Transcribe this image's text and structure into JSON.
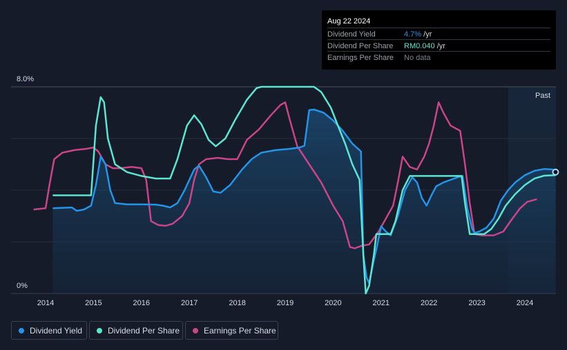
{
  "tooltip": {
    "date": "Aug 22 2024",
    "rows": [
      {
        "label": "Dividend Yield",
        "value": "4.7%",
        "unit": " /yr",
        "color": "#2394e8"
      },
      {
        "label": "Dividend Per Share",
        "value": "RM0.040",
        "unit": " /yr",
        "color": "#5ce6d2"
      },
      {
        "label": "Earnings Per Share",
        "value": "No data",
        "unit": "",
        "color": "#7c818b"
      }
    ]
  },
  "past_label": "Past",
  "legend": [
    {
      "label": "Dividend Yield",
      "color": "#2394e8"
    },
    {
      "label": "Dividend Per Share",
      "color": "#5ce6d2"
    },
    {
      "label": "Earnings Per Share",
      "color": "#c94488"
    }
  ],
  "chart_data": {
    "type": "line",
    "y_tick_labels": [
      "8.0%",
      "0%"
    ],
    "ylim": [
      0,
      8
    ],
    "x_tick_labels": [
      "2014",
      "2015",
      "2016",
      "2017",
      "2018",
      "2019",
      "2020",
      "2021",
      "2022",
      "2023",
      "2024"
    ],
    "xlim": [
      2013.5,
      2024.65
    ],
    "past_region_start": 2023.65,
    "grid": true,
    "legend_position": "bottom-left",
    "series": [
      {
        "name": "Dividend Yield",
        "color": "#2394e8",
        "area": true,
        "points": [
          [
            2014.15,
            3.3
          ],
          [
            2014.4,
            3.32
          ],
          [
            2014.55,
            3.33
          ],
          [
            2014.65,
            3.2
          ],
          [
            2014.8,
            3.25
          ],
          [
            2014.95,
            3.4
          ],
          [
            2015.05,
            4.2
          ],
          [
            2015.15,
            5.3
          ],
          [
            2015.25,
            5.0
          ],
          [
            2015.35,
            4.0
          ],
          [
            2015.45,
            3.5
          ],
          [
            2015.7,
            3.45
          ],
          [
            2016.0,
            3.45
          ],
          [
            2016.3,
            3.44
          ],
          [
            2016.45,
            3.4
          ],
          [
            2016.6,
            3.33
          ],
          [
            2016.75,
            3.5
          ],
          [
            2016.9,
            4.0
          ],
          [
            2017.1,
            4.8
          ],
          [
            2017.2,
            4.95
          ],
          [
            2017.35,
            4.5
          ],
          [
            2017.5,
            3.95
          ],
          [
            2017.65,
            3.9
          ],
          [
            2017.85,
            4.2
          ],
          [
            2018.1,
            4.8
          ],
          [
            2018.3,
            5.2
          ],
          [
            2018.5,
            5.45
          ],
          [
            2018.8,
            5.55
          ],
          [
            2019.1,
            5.6
          ],
          [
            2019.3,
            5.65
          ],
          [
            2019.4,
            5.72
          ],
          [
            2019.5,
            7.1
          ],
          [
            2019.6,
            7.12
          ],
          [
            2019.8,
            7.0
          ],
          [
            2020.0,
            6.7
          ],
          [
            2020.2,
            6.3
          ],
          [
            2020.4,
            5.8
          ],
          [
            2020.58,
            5.5
          ],
          [
            2020.63,
            1.5
          ],
          [
            2020.7,
            0.6
          ],
          [
            2020.75,
            0.4
          ],
          [
            2020.85,
            1.3
          ],
          [
            2020.9,
            1.7
          ],
          [
            2021.0,
            2.6
          ],
          [
            2021.1,
            2.4
          ],
          [
            2021.2,
            2.25
          ],
          [
            2021.35,
            3.0
          ],
          [
            2021.5,
            4.0
          ],
          [
            2021.65,
            4.5
          ],
          [
            2021.75,
            4.3
          ],
          [
            2021.85,
            3.7
          ],
          [
            2021.95,
            3.4
          ],
          [
            2022.05,
            3.8
          ],
          [
            2022.15,
            4.15
          ],
          [
            2022.3,
            4.3
          ],
          [
            2022.45,
            4.4
          ],
          [
            2022.6,
            4.5
          ],
          [
            2022.7,
            4.55
          ],
          [
            2022.8,
            3.3
          ],
          [
            2022.9,
            2.5
          ],
          [
            2022.95,
            2.35
          ],
          [
            2023.05,
            2.4
          ],
          [
            2023.2,
            2.55
          ],
          [
            2023.35,
            2.9
          ],
          [
            2023.5,
            3.6
          ],
          [
            2023.65,
            4.0
          ],
          [
            2023.8,
            4.3
          ],
          [
            2024.0,
            4.58
          ],
          [
            2024.2,
            4.75
          ],
          [
            2024.4,
            4.82
          ],
          [
            2024.58,
            4.8
          ],
          [
            2024.64,
            4.7
          ]
        ]
      },
      {
        "name": "Dividend Per Share",
        "color": "#5ce6d2",
        "area": false,
        "points": [
          [
            2014.15,
            3.8
          ],
          [
            2014.6,
            3.8
          ],
          [
            2014.95,
            3.8
          ],
          [
            2015.05,
            6.5
          ],
          [
            2015.15,
            7.6
          ],
          [
            2015.22,
            7.4
          ],
          [
            2015.3,
            6.0
          ],
          [
            2015.45,
            5.0
          ],
          [
            2015.7,
            4.7
          ],
          [
            2016.0,
            4.55
          ],
          [
            2016.3,
            4.45
          ],
          [
            2016.6,
            4.45
          ],
          [
            2016.75,
            5.2
          ],
          [
            2016.95,
            6.5
          ],
          [
            2017.1,
            6.9
          ],
          [
            2017.25,
            6.55
          ],
          [
            2017.4,
            5.95
          ],
          [
            2017.55,
            5.7
          ],
          [
            2017.75,
            6.0
          ],
          [
            2017.95,
            6.7
          ],
          [
            2018.2,
            7.5
          ],
          [
            2018.4,
            7.95
          ],
          [
            2018.5,
            8.0
          ],
          [
            2019.0,
            8.0
          ],
          [
            2019.3,
            8.0
          ],
          [
            2019.6,
            8.0
          ],
          [
            2019.75,
            7.8
          ],
          [
            2019.95,
            7.2
          ],
          [
            2020.1,
            6.5
          ],
          [
            2020.25,
            5.8
          ],
          [
            2020.4,
            5.0
          ],
          [
            2020.55,
            4.4
          ],
          [
            2020.63,
            1.5
          ],
          [
            2020.68,
            0.0
          ],
          [
            2020.75,
            0.3
          ],
          [
            2020.85,
            1.5
          ],
          [
            2020.9,
            2.3
          ],
          [
            2021.2,
            2.3
          ],
          [
            2021.3,
            2.8
          ],
          [
            2021.45,
            4.0
          ],
          [
            2021.6,
            4.55
          ],
          [
            2022.0,
            4.55
          ],
          [
            2022.3,
            4.55
          ],
          [
            2022.68,
            4.55
          ],
          [
            2022.75,
            3.5
          ],
          [
            2022.85,
            2.3
          ],
          [
            2023.0,
            2.3
          ],
          [
            2023.15,
            2.3
          ],
          [
            2023.3,
            2.5
          ],
          [
            2023.45,
            2.9
          ],
          [
            2023.6,
            3.4
          ],
          [
            2023.8,
            3.85
          ],
          [
            2024.0,
            4.2
          ],
          [
            2024.2,
            4.45
          ],
          [
            2024.4,
            4.56
          ],
          [
            2024.64,
            4.58
          ]
        ]
      },
      {
        "name": "Earnings Per Share",
        "color": "#c94488",
        "area": false,
        "points": [
          [
            2013.75,
            3.25
          ],
          [
            2014.0,
            3.3
          ],
          [
            2014.08,
            4.2
          ],
          [
            2014.18,
            5.2
          ],
          [
            2014.35,
            5.45
          ],
          [
            2014.6,
            5.55
          ],
          [
            2014.85,
            5.6
          ],
          [
            2015.0,
            5.65
          ],
          [
            2015.1,
            5.5
          ],
          [
            2015.25,
            5.0
          ],
          [
            2015.4,
            4.85
          ],
          [
            2015.55,
            4.85
          ],
          [
            2015.8,
            4.9
          ],
          [
            2016.0,
            4.85
          ],
          [
            2016.1,
            4.4
          ],
          [
            2016.2,
            2.8
          ],
          [
            2016.35,
            2.65
          ],
          [
            2016.5,
            2.62
          ],
          [
            2016.65,
            2.7
          ],
          [
            2016.85,
            3.0
          ],
          [
            2017.0,
            3.5
          ],
          [
            2017.1,
            4.4
          ],
          [
            2017.2,
            5.0
          ],
          [
            2017.35,
            5.2
          ],
          [
            2017.6,
            5.25
          ],
          [
            2017.8,
            5.2
          ],
          [
            2018.0,
            5.2
          ],
          [
            2018.2,
            5.95
          ],
          [
            2018.45,
            6.35
          ],
          [
            2018.7,
            6.9
          ],
          [
            2018.9,
            7.3
          ],
          [
            2019.0,
            7.4
          ],
          [
            2019.1,
            6.7
          ],
          [
            2019.25,
            5.7
          ],
          [
            2019.5,
            5.0
          ],
          [
            2019.75,
            4.3
          ],
          [
            2020.0,
            3.4
          ],
          [
            2020.2,
            2.8
          ],
          [
            2020.35,
            1.8
          ],
          [
            2020.45,
            1.75
          ],
          [
            2020.6,
            1.85
          ],
          [
            2020.75,
            1.9
          ],
          [
            2020.95,
            2.4
          ],
          [
            2021.1,
            2.9
          ],
          [
            2021.25,
            3.4
          ],
          [
            2021.35,
            4.3
          ],
          [
            2021.45,
            5.3
          ],
          [
            2021.6,
            4.9
          ],
          [
            2021.75,
            4.8
          ],
          [
            2021.9,
            5.3
          ],
          [
            2022.0,
            5.8
          ],
          [
            2022.1,
            6.5
          ],
          [
            2022.2,
            7.4
          ],
          [
            2022.3,
            7.0
          ],
          [
            2022.45,
            6.5
          ],
          [
            2022.65,
            6.3
          ],
          [
            2022.75,
            5.0
          ],
          [
            2022.85,
            3.5
          ],
          [
            2022.95,
            2.3
          ],
          [
            2023.1,
            2.25
          ],
          [
            2023.35,
            2.25
          ],
          [
            2023.55,
            2.4
          ],
          [
            2023.7,
            2.8
          ],
          [
            2023.9,
            3.3
          ],
          [
            2024.05,
            3.55
          ],
          [
            2024.25,
            3.65
          ]
        ]
      }
    ]
  }
}
